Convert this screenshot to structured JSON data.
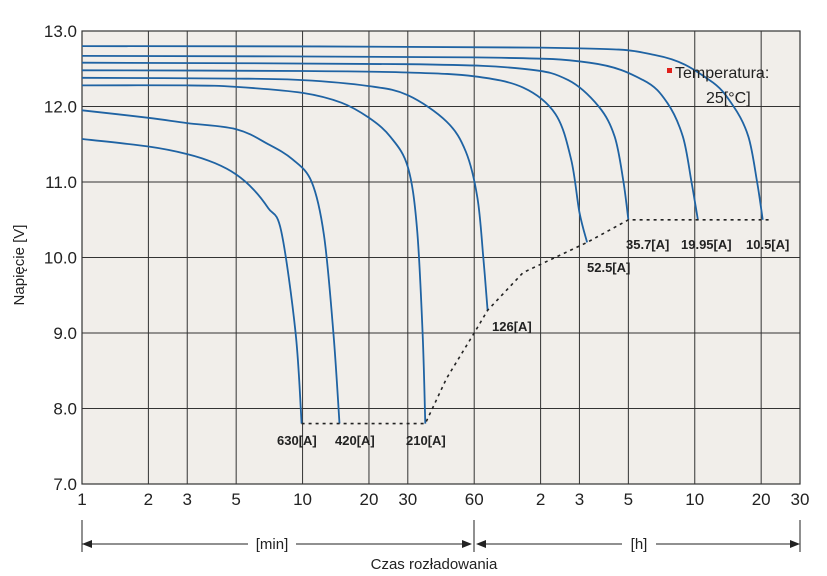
{
  "chart_data": {
    "type": "line",
    "ylabel": "Napięcie [V]",
    "xlabel": "Czas rozładowania",
    "ylim": [
      7.0,
      13.0
    ],
    "y_ticks": [
      "7.0",
      "8.0",
      "9.0",
      "10.0",
      "11.0",
      "12.0",
      "13.0"
    ],
    "x_scale": "log",
    "x_unit_min": "min",
    "x_ticks": [
      {
        "minutes": 1,
        "label": "1"
      },
      {
        "minutes": 2,
        "label": "2"
      },
      {
        "minutes": 3,
        "label": "3"
      },
      {
        "minutes": 5,
        "label": "5"
      },
      {
        "minutes": 10,
        "label": "10"
      },
      {
        "minutes": 20,
        "label": "20"
      },
      {
        "minutes": 30,
        "label": "30"
      },
      {
        "minutes": 60,
        "label": "60"
      },
      {
        "minutes": 120,
        "label": "2"
      },
      {
        "minutes": 180,
        "label": "3"
      },
      {
        "minutes": 300,
        "label": "5"
      },
      {
        "minutes": 600,
        "label": "10"
      },
      {
        "minutes": 1200,
        "label": "20"
      },
      {
        "minutes": 1800,
        "label": "30"
      }
    ],
    "grid": true,
    "range_labels": {
      "minutes": "[min]",
      "hours": "[h]"
    },
    "annotation": "Temperatura:",
    "annotation_value": "25[°C]",
    "annotation_color": "#e0201b",
    "series_color": "#1f63a3",
    "series": [
      {
        "label": "630[A]",
        "points": [
          [
            1,
            11.57
          ],
          [
            2,
            11.47
          ],
          [
            3,
            11.37
          ],
          [
            4,
            11.25
          ],
          [
            5,
            11.1
          ],
          [
            6,
            10.9
          ],
          [
            7,
            10.65
          ],
          [
            8,
            10.35
          ],
          [
            9.3,
            9.0
          ],
          [
            9.9,
            7.8
          ]
        ]
      },
      {
        "label": "420[A]",
        "points": [
          [
            1,
            11.95
          ],
          [
            2,
            11.85
          ],
          [
            3,
            11.78
          ],
          [
            5,
            11.7
          ],
          [
            7,
            11.5
          ],
          [
            9,
            11.3
          ],
          [
            11,
            11.0
          ],
          [
            12.5,
            10.3
          ],
          [
            13.8,
            9.0
          ],
          [
            14.7,
            7.8
          ]
        ]
      },
      {
        "label": "210[A]",
        "points": [
          [
            1,
            12.28
          ],
          [
            3,
            12.28
          ],
          [
            5,
            12.26
          ],
          [
            10,
            12.18
          ],
          [
            15,
            12.05
          ],
          [
            20,
            11.85
          ],
          [
            25,
            11.6
          ],
          [
            30,
            11.2
          ],
          [
            33,
            10.4
          ],
          [
            35,
            9.0
          ],
          [
            36,
            7.8
          ]
        ]
      },
      {
        "label": "126[A]",
        "points": [
          [
            1,
            12.38
          ],
          [
            5,
            12.37
          ],
          [
            10,
            12.35
          ],
          [
            20,
            12.27
          ],
          [
            30,
            12.15
          ],
          [
            45,
            11.8
          ],
          [
            55,
            11.4
          ],
          [
            62,
            10.8
          ],
          [
            66,
            10.0
          ],
          [
            69,
            9.3
          ]
        ]
      },
      {
        "label": "52.5[A]",
        "points": [
          [
            1,
            12.48
          ],
          [
            10,
            12.47
          ],
          [
            30,
            12.45
          ],
          [
            60,
            12.4
          ],
          [
            100,
            12.25
          ],
          [
            140,
            11.9
          ],
          [
            165,
            11.3
          ],
          [
            180,
            10.6
          ],
          [
            195,
            10.2
          ]
        ]
      },
      {
        "label": "35.7[A]",
        "points": [
          [
            1,
            12.58
          ],
          [
            30,
            12.56
          ],
          [
            100,
            12.5
          ],
          [
            160,
            12.35
          ],
          [
            220,
            12.0
          ],
          [
            260,
            11.6
          ],
          [
            285,
            11.0
          ],
          [
            300,
            10.5
          ]
        ]
      },
      {
        "label": "19.95[A]",
        "points": [
          [
            1,
            12.67
          ],
          [
            60,
            12.65
          ],
          [
            200,
            12.58
          ],
          [
            350,
            12.35
          ],
          [
            450,
            12.05
          ],
          [
            530,
            11.6
          ],
          [
            580,
            11.0
          ],
          [
            620,
            10.5
          ]
        ]
      },
      {
        "label": "10.5[A]",
        "points": [
          [
            1,
            12.8
          ],
          [
            120,
            12.78
          ],
          [
            400,
            12.68
          ],
          [
            700,
            12.35
          ],
          [
            900,
            12.0
          ],
          [
            1050,
            11.6
          ],
          [
            1150,
            11.0
          ],
          [
            1220,
            10.5
          ]
        ]
      }
    ],
    "cutoff_line": [
      [
        9.9,
        7.8
      ],
      [
        36,
        7.8
      ],
      [
        45,
        8.4
      ],
      [
        60,
        9.0
      ],
      [
        69,
        9.3
      ],
      [
        100,
        9.8
      ],
      [
        195,
        10.2
      ],
      [
        300,
        10.5
      ],
      [
        620,
        10.5
      ],
      [
        1220,
        10.5
      ],
      [
        1300,
        10.5
      ]
    ]
  }
}
